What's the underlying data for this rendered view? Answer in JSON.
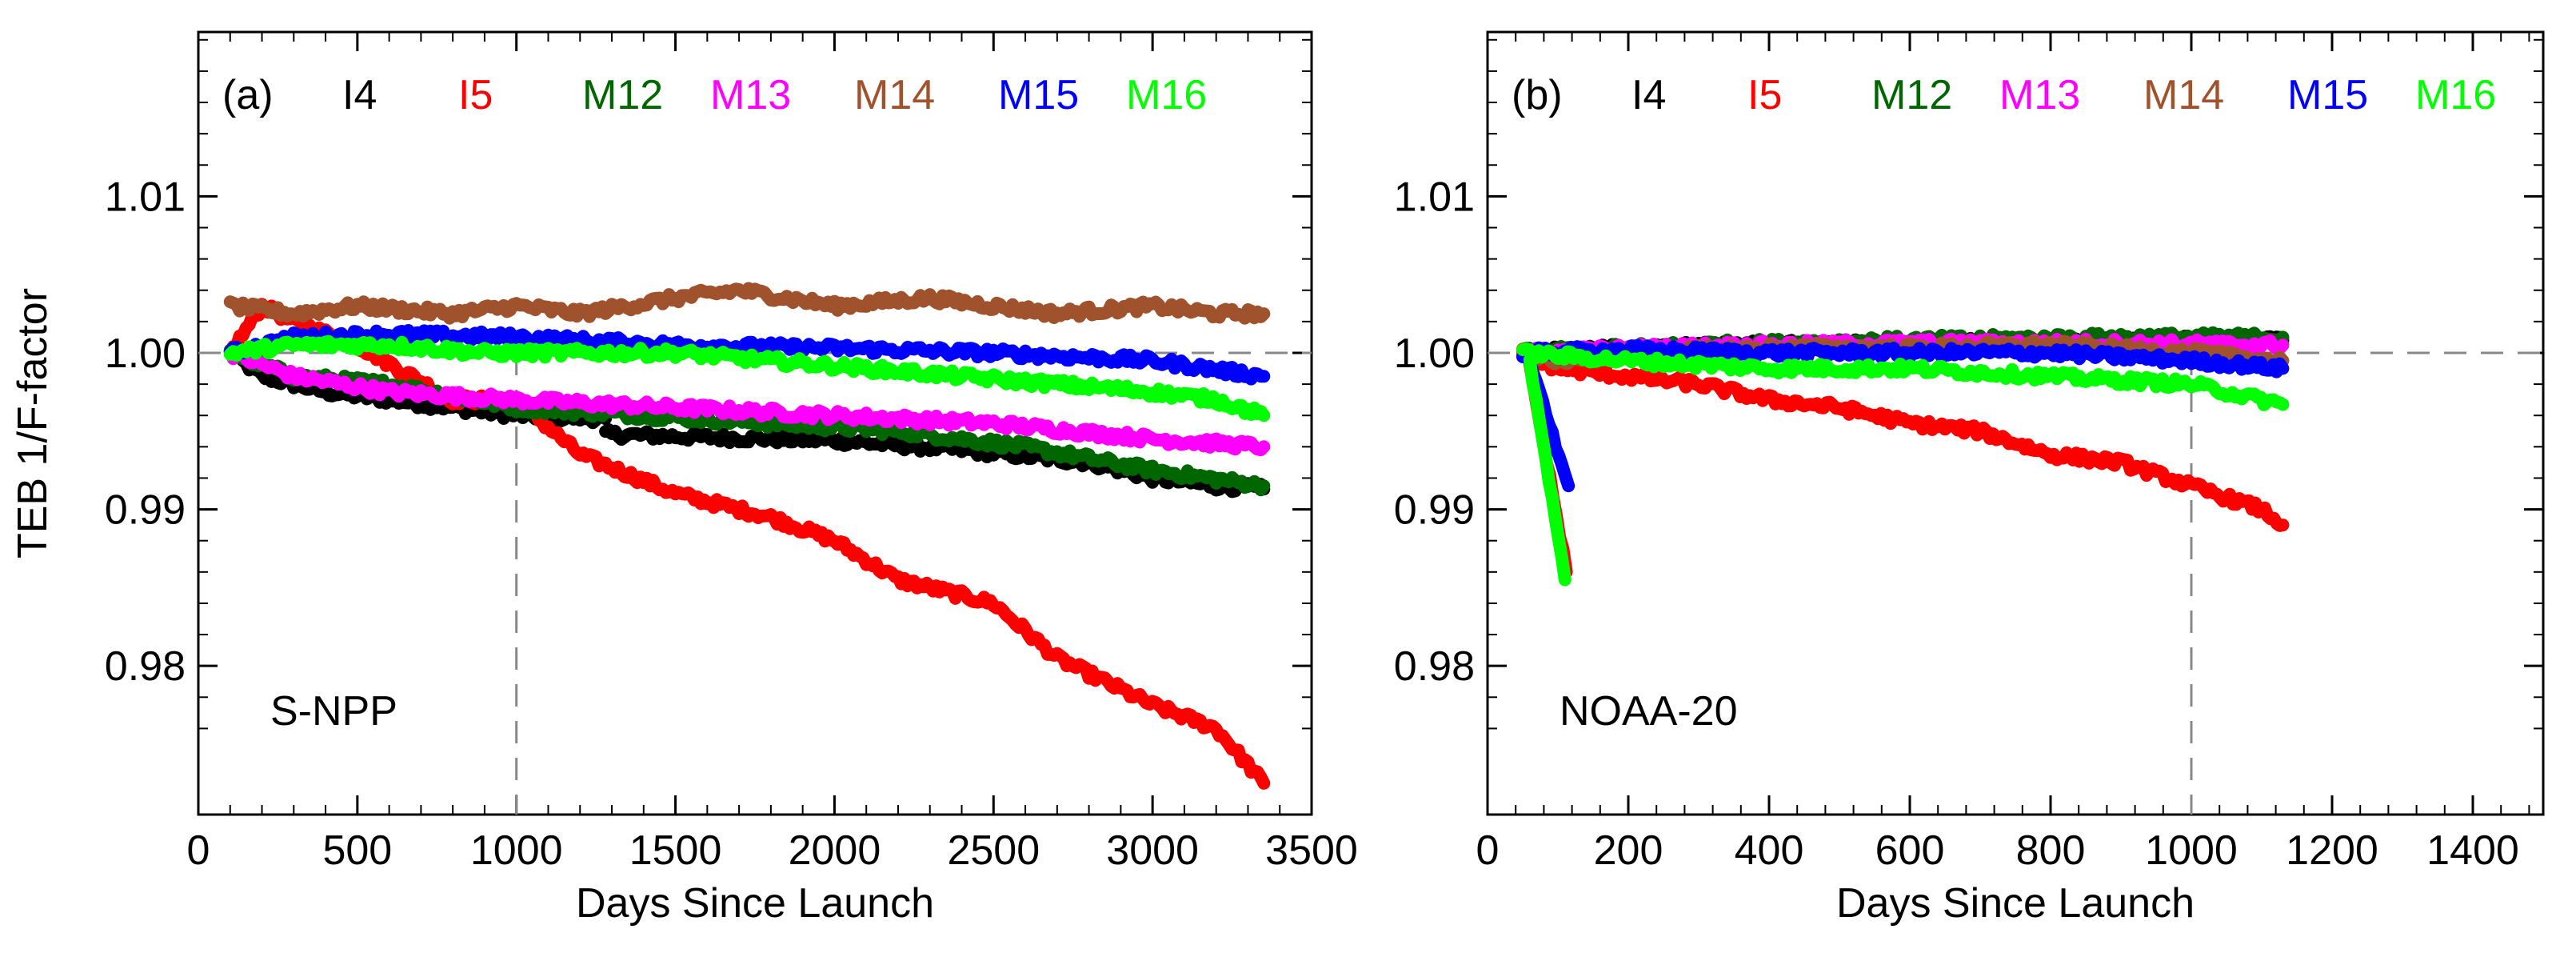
{
  "chart_data": [
    {
      "type": "line",
      "panel_label": "(a)",
      "satellite": "S-NPP",
      "xlabel": "Days Since Launch",
      "ylabel": "TEB 1/F-factor",
      "xlim": [
        0,
        3500
      ],
      "ylim": [
        0.9705,
        1.0205
      ],
      "x_ticks": [
        0,
        500,
        1000,
        1500,
        2000,
        2500,
        3000,
        3500
      ],
      "x_tick_labels": [
        "0",
        "500",
        "1000",
        "1500",
        "2000",
        "2500",
        "3000",
        "3500"
      ],
      "y_ticks": [
        0.98,
        0.99,
        1.0,
        1.01
      ],
      "y_tick_labels": [
        "0.98",
        "0.99",
        "1.00",
        "1.01"
      ],
      "reference_lines": {
        "y": 1.0,
        "x": 1000
      },
      "series": [
        {
          "name": "I4",
          "color": "#000000",
          "x": [
            100,
            200,
            400,
            600,
            800,
            1000,
            1280
          ],
          "y": [
            1.0,
            0.9985,
            0.9975,
            0.997,
            0.9965,
            0.996,
            0.9958
          ]
        },
        {
          "name": "I4",
          "segment": 2,
          "color": "#000000",
          "x": [
            1280,
            1600,
            2000,
            2400,
            2800,
            3000,
            3200,
            3350
          ],
          "y": [
            0.9948,
            0.9946,
            0.9944,
            0.9938,
            0.993,
            0.992,
            0.9915,
            0.9913
          ]
        },
        {
          "name": "I5",
          "color": "#ff0000",
          "x": [
            100,
            200,
            300,
            500,
            800,
            1000,
            1200,
            1500,
            1800,
            2000,
            2200,
            2500,
            2700,
            3000,
            3200,
            3350
          ],
          "y": [
            1.0,
            1.003,
            1.002,
            1.0005,
            0.997,
            0.997,
            0.9935,
            0.991,
            0.9895,
            0.988,
            0.9855,
            0.984,
            0.9805,
            0.9775,
            0.976,
            0.9725
          ]
        },
        {
          "name": "M12",
          "color": "#006600",
          "x": [
            100,
            300,
            600,
            1000,
            1400,
            1800,
            2200,
            2600,
            3000,
            3350
          ],
          "y": [
            1.0,
            0.9985,
            0.998,
            0.9965,
            0.996,
            0.9955,
            0.995,
            0.994,
            0.9925,
            0.9915
          ]
        },
        {
          "name": "M13",
          "color": "#ff00ff",
          "x": [
            100,
            300,
            600,
            1000,
            1500,
            2000,
            2500,
            3000,
            3350
          ],
          "y": [
            1.0,
            0.9985,
            0.9975,
            0.997,
            0.9965,
            0.996,
            0.9955,
            0.9945,
            0.994
          ]
        },
        {
          "name": "M14",
          "color": "#a0522d",
          "x": [
            100,
            300,
            500,
            800,
            1000,
            1200,
            1500,
            1700,
            2000,
            2300,
            2500,
            2700,
            3000,
            3200,
            3350
          ],
          "y": [
            1.003,
            1.0025,
            1.003,
            1.0025,
            1.003,
            1.0025,
            1.0035,
            1.004,
            1.003,
            1.0035,
            1.003,
            1.0025,
            1.003,
            1.0025,
            1.0025
          ]
        },
        {
          "name": "M15",
          "color": "#0000ff",
          "x": [
            100,
            300,
            600,
            1000,
            1500,
            2000,
            2500,
            3000,
            3350
          ],
          "y": [
            1.0,
            1.001,
            1.0012,
            1.001,
            1.0005,
            1.0003,
            1.0,
            0.9995,
            0.9985
          ]
        },
        {
          "name": "M16",
          "color": "#00ff00",
          "x": [
            100,
            300,
            600,
            900,
            1200,
            1500,
            1800,
            2100,
            2400,
            2700,
            3000,
            3200,
            3350
          ],
          "y": [
            1.0,
            1.0005,
            1.0005,
            1.0,
            1.0,
            1.0,
            0.9995,
            0.999,
            0.9985,
            0.998,
            0.9975,
            0.997,
            0.996
          ]
        }
      ]
    },
    {
      "type": "line",
      "panel_label": "(b)",
      "satellite": "NOAA-20",
      "xlabel": "Days Since Launch",
      "ylabel": "",
      "xlim": [
        0,
        1500
      ],
      "ylim": [
        0.9705,
        1.0205
      ],
      "x_ticks": [
        0,
        200,
        400,
        600,
        800,
        1000,
        1200,
        1400
      ],
      "x_tick_labels": [
        "0",
        "200",
        "400",
        "600",
        "800",
        "1000",
        "1200",
        "1400"
      ],
      "y_ticks": [
        0.98,
        0.99,
        1.0,
        1.01
      ],
      "y_tick_labels": [
        "0.98",
        "0.99",
        "1.00",
        "1.01"
      ],
      "reference_lines": {
        "y": 1.0,
        "x": 1000
      },
      "series": [
        {
          "name": "I4",
          "color": "#000000",
          "x": [
            50,
            200,
            400,
            600,
            800,
            1000,
            1130
          ],
          "y": [
            1.0,
            1.0003,
            1.0005,
            1.0006,
            1.0007,
            1.0008,
            1.0008
          ]
        },
        {
          "name": "I5",
          "color": "#ff0000",
          "x": [
            50,
            100,
            200,
            300,
            400,
            500,
            600,
            700,
            800,
            900,
            1000,
            1100,
            1130
          ],
          "y": [
            1.0,
            0.999,
            0.9985,
            0.998,
            0.997,
            0.9965,
            0.9955,
            0.995,
            0.9935,
            0.993,
            0.9915,
            0.99,
            0.989
          ]
        },
        {
          "name": "I5",
          "segment": 2,
          "color": "#ff0000",
          "x": [
            60,
            112
          ],
          "y": [
            0.999,
            0.986
          ]
        },
        {
          "name": "M12",
          "color": "#006600",
          "x": [
            50,
            300,
            600,
            900,
            1130
          ],
          "y": [
            1.0,
            1.0005,
            1.0008,
            1.001,
            1.001
          ]
        },
        {
          "name": "M13",
          "color": "#ff00ff",
          "x": [
            50,
            300,
            600,
            900,
            1130
          ],
          "y": [
            1.0,
            1.0004,
            1.0006,
            1.0006,
            1.0005
          ]
        },
        {
          "name": "M14",
          "color": "#a0522d",
          "x": [
            50,
            100,
            200,
            400,
            600,
            800,
            1000,
            1130
          ],
          "y": [
            1.0,
            0.9995,
            1.0,
            1.0003,
            1.0003,
            1.0005,
            1.0,
            0.9995
          ]
        },
        {
          "name": "M15",
          "color": "#0000ff",
          "x": [
            50,
            200,
            400,
            600,
            800,
            1000,
            1130
          ],
          "y": [
            1.0,
            1.0002,
            1.0,
            1.0,
            1.0,
            0.9995,
            0.999
          ]
        },
        {
          "name": "M15",
          "segment": 2,
          "color": "#0000ff",
          "x": [
            60,
            115
          ],
          "y": [
            0.9995,
            0.9915
          ]
        },
        {
          "name": "M16",
          "color": "#00ff00",
          "x": [
            50,
            200,
            400,
            600,
            800,
            1000,
            1130
          ],
          "y": [
            1.0,
            0.9995,
            0.999,
            0.999,
            0.9985,
            0.998,
            0.9967
          ]
        },
        {
          "name": "M16",
          "segment": 2,
          "color": "#00ff00",
          "x": [
            60,
            110
          ],
          "y": [
            0.9995,
            0.9855
          ]
        }
      ]
    }
  ]
}
